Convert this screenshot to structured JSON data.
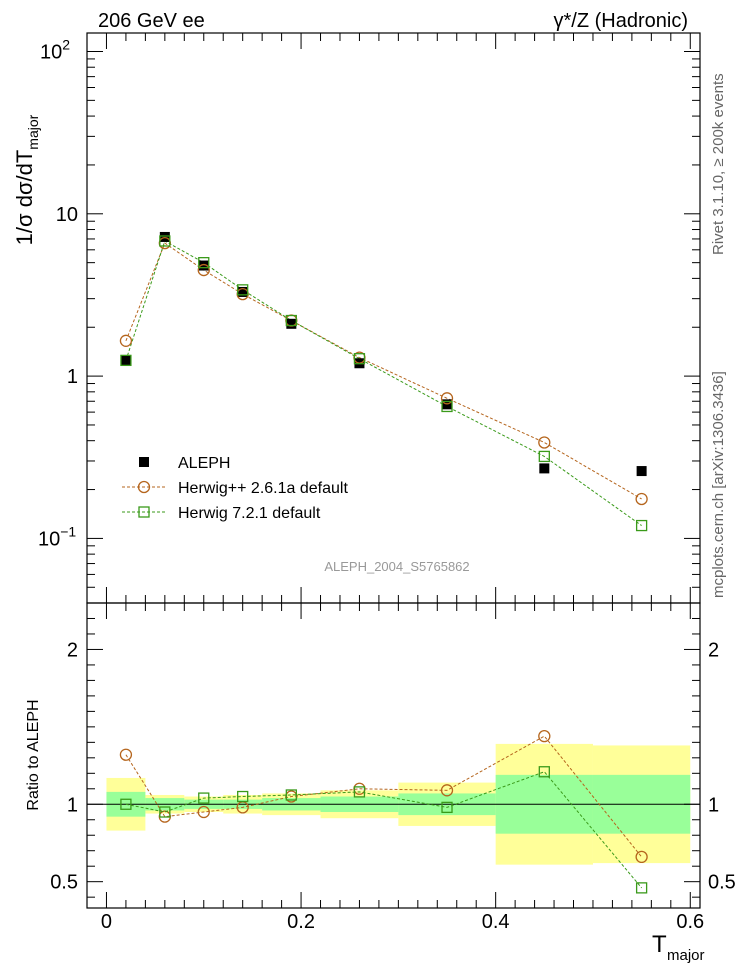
{
  "header": {
    "left": "206 GeV ee",
    "right": "γ*/Z (Hadronic)"
  },
  "side_labels": {
    "rivet": "Rivet 3.1.10, ≥ 200k events",
    "mcplots": "mcplots.cern.ch [arXiv:1306.3436]"
  },
  "watermark": "ALEPH_2004_S5765862",
  "colors": {
    "data": "#000000",
    "herwigpp": "#b5651d",
    "herwig7": "#3a9a1a",
    "band_inner": "#99ff99",
    "band_outer": "#ffff99"
  },
  "chart_data": [
    {
      "type": "scatter",
      "name": "main",
      "ylabel": "1/σ dσ/dT_major",
      "yscale": "log",
      "ylim": [
        0.04,
        130
      ],
      "xlim": [
        -0.02,
        0.61
      ],
      "yticks": [
        {
          "value": 0.1,
          "label": "10",
          "sup": "−1"
        },
        {
          "value": 1,
          "label": "1",
          "sup": ""
        },
        {
          "value": 10,
          "label": "10",
          "sup": ""
        },
        {
          "value": 100,
          "label": "10",
          "sup": "2"
        }
      ],
      "legend": [
        {
          "key": "data",
          "label": "ALEPH"
        },
        {
          "key": "herwigpp",
          "label": "Herwig++ 2.6.1a default"
        },
        {
          "key": "herwig7",
          "label": "Herwig 7.2.1 default"
        }
      ],
      "x": [
        0.02,
        0.06,
        0.1,
        0.14,
        0.19,
        0.26,
        0.35,
        0.45,
        0.55
      ],
      "series": [
        {
          "name": "ALEPH",
          "key": "data",
          "values": [
            1.25,
            7.2,
            4.8,
            3.3,
            2.1,
            1.2,
            0.67,
            0.27,
            0.26
          ]
        },
        {
          "name": "Herwig++ 2.6.1a default",
          "key": "herwigpp",
          "values": [
            1.65,
            6.6,
            4.5,
            3.2,
            2.2,
            1.3,
            0.73,
            0.39,
            0.175
          ]
        },
        {
          "name": "Herwig 7.2.1 default",
          "key": "herwig7",
          "values": [
            1.25,
            6.8,
            5.0,
            3.4,
            2.2,
            1.28,
            0.65,
            0.32,
            0.12
          ]
        }
      ]
    },
    {
      "type": "scatter",
      "name": "ratio",
      "ylabel": "Ratio to ALEPH",
      "xlabel": "T",
      "xlabel_sub": "major",
      "ylim": [
        0.33,
        2.3
      ],
      "xlim": [
        -0.02,
        0.61
      ],
      "yticks": [
        {
          "value": 0.5,
          "label": "0.5"
        },
        {
          "value": 1,
          "label": "1"
        },
        {
          "value": 2,
          "label": "2"
        }
      ],
      "xticks": [
        {
          "value": 0,
          "label": "0"
        },
        {
          "value": 0.2,
          "label": "0.2"
        },
        {
          "value": 0.4,
          "label": "0.4"
        },
        {
          "value": 0.6,
          "label": "0.6"
        }
      ],
      "bins": [
        {
          "lo": 0.0,
          "hi": 0.04,
          "inner": [
            0.92,
            1.08
          ],
          "outer": [
            0.83,
            1.17
          ]
        },
        {
          "lo": 0.04,
          "hi": 0.08,
          "inner": [
            0.96,
            1.04
          ],
          "outer": [
            0.94,
            1.06
          ]
        },
        {
          "lo": 0.08,
          "hi": 0.12,
          "inner": [
            0.97,
            1.03
          ],
          "outer": [
            0.95,
            1.05
          ]
        },
        {
          "lo": 0.12,
          "hi": 0.16,
          "inner": [
            0.97,
            1.03
          ],
          "outer": [
            0.94,
            1.06
          ]
        },
        {
          "lo": 0.16,
          "hi": 0.22,
          "inner": [
            0.96,
            1.04
          ],
          "outer": [
            0.93,
            1.07
          ]
        },
        {
          "lo": 0.22,
          "hi": 0.3,
          "inner": [
            0.95,
            1.05
          ],
          "outer": [
            0.91,
            1.09
          ]
        },
        {
          "lo": 0.3,
          "hi": 0.4,
          "inner": [
            0.93,
            1.07
          ],
          "outer": [
            0.86,
            1.14
          ]
        },
        {
          "lo": 0.4,
          "hi": 0.5,
          "inner": [
            0.81,
            1.19
          ],
          "outer": [
            0.61,
            1.39
          ]
        },
        {
          "lo": 0.5,
          "hi": 0.6,
          "inner": [
            0.81,
            1.19
          ],
          "outer": [
            0.62,
            1.38
          ]
        }
      ],
      "x": [
        0.02,
        0.06,
        0.1,
        0.14,
        0.19,
        0.26,
        0.35,
        0.45,
        0.55
      ],
      "series": [
        {
          "name": "Herwig++ 2.6.1a default",
          "key": "herwigpp",
          "values": [
            1.32,
            0.92,
            0.95,
            0.98,
            1.05,
            1.1,
            1.09,
            1.44,
            0.66
          ]
        },
        {
          "name": "Herwig 7.2.1 default",
          "key": "herwig7",
          "values": [
            1.0,
            0.95,
            1.04,
            1.05,
            1.06,
            1.08,
            0.98,
            1.21,
            0.46
          ]
        }
      ]
    }
  ]
}
